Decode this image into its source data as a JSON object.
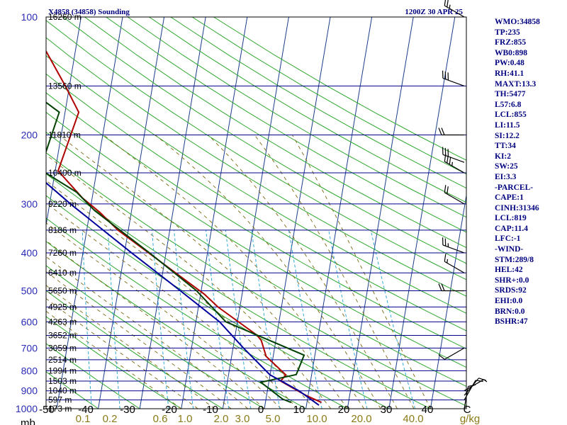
{
  "header": {
    "left": "X4858 (34858) Sounding",
    "right": "1200Z 30 APR 25"
  },
  "indices": [
    "WMO:34858",
    "TP:235",
    "FRZ:855",
    "WB0:898",
    "PW:0.48",
    "RH:41.1",
    "MAXT:13.3",
    "TH:5477",
    "L57:6.8",
    "LCL:855",
    "LI:11.5",
    "SI:12.2",
    "TT:34",
    "KI:2",
    "SW:25",
    "EI:3.3",
    "-PARCEL-",
    "CAPE:1",
    "CINH:31346",
    "LCL:819",
    "CAP:11.4",
    "LFC:-1",
    "-WIND-",
    "STM:289/8",
    "HEL:42",
    "SHR+:0.0",
    "SRDS:92",
    "EHI:0.0",
    "BRN:0.0",
    "BSHR:47"
  ],
  "colors": {
    "frame": "#000000",
    "isobar": "#00008b",
    "isotherm": "#1a3f8a",
    "dry_adiabat": "#2fa82f",
    "moist_adiabat": "#7a6a10",
    "mixing_ratio": "#33a9d6",
    "temperature": "#b00000",
    "dewpoint": "#004000",
    "parcel": "#00009c",
    "pressure_labels": "#2b2bb8",
    "mixing_labels": "#8a7a18",
    "indices": "#000080",
    "barbs": "#000000"
  },
  "chart_data": {
    "type": "line",
    "subtype": "skew-T log-p sounding",
    "y_scale": "log",
    "ylim": [
      1000,
      100
    ],
    "xlim": [
      -50,
      50
    ],
    "x_unit_label": "C",
    "mixing_ratio_unit_label": "g/kg",
    "corner_label": "mb",
    "grid": true,
    "pressure_ticks": [
      "100",
      "200",
      "300",
      "400",
      "500",
      "600",
      "700",
      "800",
      "900",
      "1000"
    ],
    "temperature_ticks": [
      "-50",
      "-40",
      "-30",
      "-20",
      "-10",
      "0",
      "10",
      "20",
      "30",
      "40",
      "C"
    ],
    "mixing_ratio_ticks": [
      "0.1",
      "0.2",
      "0.6",
      "1.0",
      "2.0",
      "3.0",
      "5.0",
      "10.0",
      "20.0",
      "40.0"
    ],
    "height_labels": [
      {
        "p": 100,
        "text": "16260 m"
      },
      {
        "p": 150,
        "text": "13560 m"
      },
      {
        "p": 200,
        "text": "11810 m"
      },
      {
        "p": 250,
        "text": "10400 m"
      },
      {
        "p": 300,
        "text": "9220 m"
      },
      {
        "p": 350,
        "text": "8186 m"
      },
      {
        "p": 400,
        "text": "7260 m"
      },
      {
        "p": 450,
        "text": "6410 m"
      },
      {
        "p": 500,
        "text": "5650 m"
      },
      {
        "p": 550,
        "text": "4925 m"
      },
      {
        "p": 600,
        "text": "4263 m"
      },
      {
        "p": 650,
        "text": "3652 m"
      },
      {
        "p": 700,
        "text": "3059 m"
      },
      {
        "p": 750,
        "text": "2514 m"
      },
      {
        "p": 800,
        "text": "1994 m"
      },
      {
        "p": 850,
        "text": "1503 m"
      },
      {
        "p": 900,
        "text": "1040 m"
      },
      {
        "p": 950,
        "text": "597 m"
      },
      {
        "p": 1000,
        "text": "173 m"
      }
    ],
    "series": [
      {
        "p": [
          964,
          925,
          850,
          820,
          735,
          670,
          650,
          550,
          510,
          350,
          315,
          290,
          247,
          175,
          150,
          100
        ],
        "t": [
          13.5,
          9.5,
          2.8,
          3.8,
          -1.7,
          -3.5,
          -4.7,
          -15.3,
          -19.1,
          -42.5,
          -47.6,
          -52.3,
          -59.3,
          -56.7,
          -61.0,
          -73.0
        ]
      },
      {
        "p": [
          964,
          945,
          856,
          818,
          730,
          600,
          500,
          400,
          312,
          280,
          245,
          175,
          150,
          100
        ],
        "t": [
          6.2,
          4.0,
          -1.9,
          6.3,
          7.4,
          -12.8,
          -21.1,
          -34.0,
          -48.9,
          -54.0,
          -63.7,
          -61.4,
          -71.0,
          -86.0
        ]
      },
      {
        "p": [
          980,
          900,
          850,
          820,
          700,
          600,
          500,
          400,
          300,
          200,
          100
        ],
        "t": [
          13.0,
          7.6,
          3.0,
          0.0,
          -7.5,
          -14.3,
          -25.0,
          -38.3,
          -55.0,
          -77.0,
          -110.0
        ]
      }
    ],
    "wind_barbs": [
      {
        "p": 100,
        "dir": 300,
        "spd": 25
      },
      {
        "p": 150,
        "dir": 290,
        "spd": 30
      },
      {
        "p": 200,
        "dir": 270,
        "spd": 20
      },
      {
        "p": 235,
        "dir": 290,
        "spd": 30
      },
      {
        "p": 250,
        "dir": 300,
        "spd": 35
      },
      {
        "p": 300,
        "dir": 300,
        "spd": 20
      },
      {
        "p": 400,
        "dir": 290,
        "spd": 25
      },
      {
        "p": 450,
        "dir": 300,
        "spd": 15
      },
      {
        "p": 500,
        "dir": 270,
        "spd": 20
      },
      {
        "p": 700,
        "dir": 240,
        "spd": 10
      },
      {
        "p": 900,
        "dir": 60,
        "spd": 5
      },
      {
        "p": 925,
        "dir": 40,
        "spd": 10
      },
      {
        "p": 950,
        "dir": 30,
        "spd": 10
      },
      {
        "p": 1000,
        "dir": 10,
        "spd": 10
      }
    ]
  }
}
